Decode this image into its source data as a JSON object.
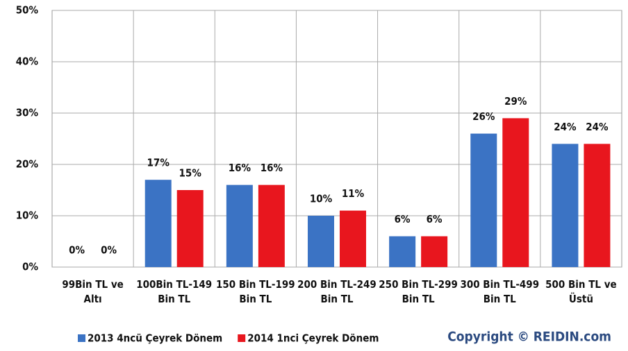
{
  "chart_data": {
    "type": "bar",
    "categories": [
      "99Bin TL ve Altı",
      "100Bin TL-149 Bin TL",
      "150 Bin TL-199 Bin TL",
      "200 Bin TL-249 Bin TL",
      "250 Bin TL-299 Bin TL",
      "300 Bin TL-499 Bin TL",
      "500 Bin TL ve Üstü"
    ],
    "series": [
      {
        "name": "2013 4ncü Çeyrek Dönem",
        "color": "#3b73c4",
        "values": [
          0,
          17,
          16,
          10,
          6,
          26,
          24
        ],
        "value_labels": [
          "0%",
          "17%",
          "16%",
          "10%",
          "6%",
          "26%",
          "24%"
        ]
      },
      {
        "name": "2014 1nci Çeyrek Dönem",
        "color": "#e8161e",
        "values": [
          0,
          15,
          16,
          11,
          6,
          29,
          24
        ],
        "value_labels": [
          "0%",
          "15%",
          "16%",
          "11%",
          "6%",
          "29%",
          "24%"
        ]
      }
    ],
    "ylim": [
      0,
      50
    ],
    "yticks": [
      {
        "value": 0,
        "label": "0%"
      },
      {
        "value": 10,
        "label": "10%"
      },
      {
        "value": 20,
        "label": "20%"
      },
      {
        "value": 30,
        "label": "30%"
      },
      {
        "value": 40,
        "label": "40%"
      },
      {
        "value": 50,
        "label": "50%"
      }
    ],
    "grid": true,
    "legend": "bottom",
    "copyright": "Copyright © REIDIN.com"
  }
}
